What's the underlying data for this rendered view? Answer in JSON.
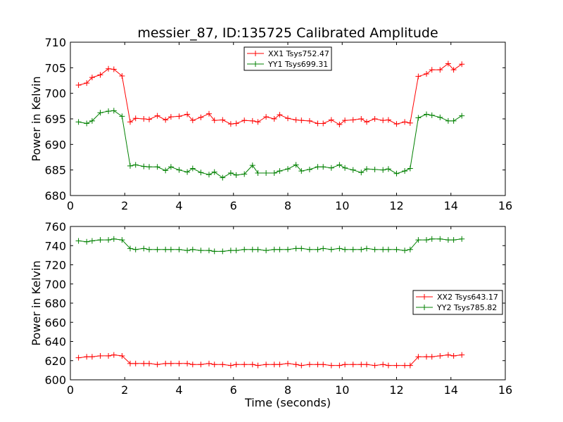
{
  "figure": {
    "title": "messier_87, ID:135725 Calibrated Amplitude"
  },
  "chart_data": [
    {
      "type": "line",
      "title": "messier_87, ID:135725 Calibrated Amplitude",
      "xlabel": "",
      "ylabel": "Power in Kelvin",
      "xlim": [
        0,
        16
      ],
      "ylim": [
        680,
        710
      ],
      "xticks": [
        0,
        2,
        4,
        6,
        8,
        10,
        12,
        14,
        16
      ],
      "yticks": [
        680,
        685,
        690,
        695,
        700,
        705,
        710
      ],
      "legend_position": "top-center",
      "x": [
        0.3,
        0.6,
        0.8,
        1.1,
        1.4,
        1.6,
        1.9,
        2.2,
        2.4,
        2.7,
        2.9,
        3.2,
        3.5,
        3.7,
        4.0,
        4.3,
        4.5,
        4.8,
        5.1,
        5.3,
        5.6,
        5.9,
        6.1,
        6.4,
        6.7,
        6.9,
        7.2,
        7.5,
        7.7,
        8.0,
        8.3,
        8.5,
        8.8,
        9.1,
        9.3,
        9.6,
        9.9,
        10.1,
        10.4,
        10.7,
        10.9,
        11.2,
        11.5,
        11.7,
        12.0,
        12.3,
        12.5,
        12.8,
        13.1,
        13.3,
        13.6,
        13.9,
        14.1,
        14.4
      ],
      "series": [
        {
          "name": "XX1 Tsys752.47",
          "color": "#ff0000",
          "values": [
            701.6,
            702.0,
            703.1,
            703.6,
            704.8,
            704.7,
            703.4,
            694.4,
            695.1,
            695.0,
            694.9,
            695.6,
            694.8,
            695.4,
            695.5,
            695.9,
            694.7,
            695.3,
            696.0,
            694.7,
            694.8,
            694.0,
            694.1,
            694.7,
            694.6,
            694.4,
            695.4,
            695.0,
            695.8,
            695.1,
            694.8,
            694.7,
            694.6,
            694.1,
            694.1,
            694.8,
            693.9,
            694.7,
            694.8,
            695.0,
            694.4,
            695.0,
            694.7,
            694.8,
            694.0,
            694.4,
            694.2,
            703.3,
            703.8,
            704.6,
            704.6,
            705.8,
            704.6,
            705.7
          ]
        },
        {
          "name": "YY1 Tsys699.31",
          "color": "#008000",
          "values": [
            694.4,
            694.1,
            694.6,
            696.2,
            696.5,
            696.6,
            695.5,
            685.8,
            686.0,
            685.7,
            685.6,
            685.6,
            684.9,
            685.6,
            685.0,
            684.6,
            685.3,
            684.5,
            684.1,
            684.6,
            683.5,
            684.4,
            684.0,
            684.2,
            685.9,
            684.4,
            684.4,
            684.4,
            684.8,
            685.2,
            686.0,
            684.8,
            685.1,
            685.6,
            685.6,
            685.4,
            686.0,
            685.4,
            685.0,
            684.5,
            685.2,
            685.1,
            685.0,
            685.2,
            684.3,
            684.8,
            685.3,
            695.2,
            695.9,
            695.7,
            695.3,
            694.6,
            694.6,
            695.6
          ]
        }
      ]
    },
    {
      "type": "line",
      "title": "",
      "xlabel": "Time (seconds)",
      "ylabel": "Power in Kelvin",
      "xlim": [
        0,
        16
      ],
      "ylim": [
        600,
        760
      ],
      "xticks": [
        0,
        2,
        4,
        6,
        8,
        10,
        12,
        14,
        16
      ],
      "yticks": [
        600,
        620,
        640,
        660,
        680,
        700,
        720,
        740,
        760
      ],
      "legend_position": "center-right",
      "x": [
        0.3,
        0.6,
        0.8,
        1.1,
        1.4,
        1.6,
        1.9,
        2.2,
        2.4,
        2.7,
        2.9,
        3.2,
        3.5,
        3.7,
        4.0,
        4.3,
        4.5,
        4.8,
        5.1,
        5.3,
        5.6,
        5.9,
        6.1,
        6.4,
        6.7,
        6.9,
        7.2,
        7.5,
        7.7,
        8.0,
        8.3,
        8.5,
        8.8,
        9.1,
        9.3,
        9.6,
        9.9,
        10.1,
        10.4,
        10.7,
        10.9,
        11.2,
        11.5,
        11.7,
        12.0,
        12.3,
        12.5,
        12.8,
        13.1,
        13.3,
        13.6,
        13.9,
        14.1,
        14.4
      ],
      "series": [
        {
          "name": "XX2 Tsys643.17",
          "color": "#ff0000",
          "values": [
            623,
            624,
            624,
            625,
            625,
            626,
            625,
            617,
            617,
            617,
            617,
            616,
            617,
            617,
            617,
            617,
            616,
            616,
            617,
            616,
            616,
            615,
            616,
            616,
            616,
            615,
            616,
            616,
            616,
            617,
            616,
            615,
            616,
            616,
            616,
            615,
            615,
            616,
            616,
            616,
            616,
            615,
            616,
            615,
            615,
            615,
            615,
            624,
            624,
            624,
            625,
            626,
            625,
            626
          ]
        },
        {
          "name": "YY2 Tsys785.82",
          "color": "#008000",
          "values": [
            745,
            744,
            745,
            746,
            746,
            747,
            746,
            737,
            736,
            737,
            736,
            736,
            736,
            736,
            736,
            735,
            736,
            735,
            735,
            734,
            734,
            735,
            735,
            736,
            736,
            736,
            735,
            736,
            736,
            736,
            737,
            737,
            736,
            736,
            737,
            736,
            737,
            736,
            736,
            736,
            737,
            736,
            736,
            736,
            736,
            735,
            736,
            746,
            746,
            747,
            747,
            746,
            746,
            747
          ]
        }
      ]
    }
  ]
}
